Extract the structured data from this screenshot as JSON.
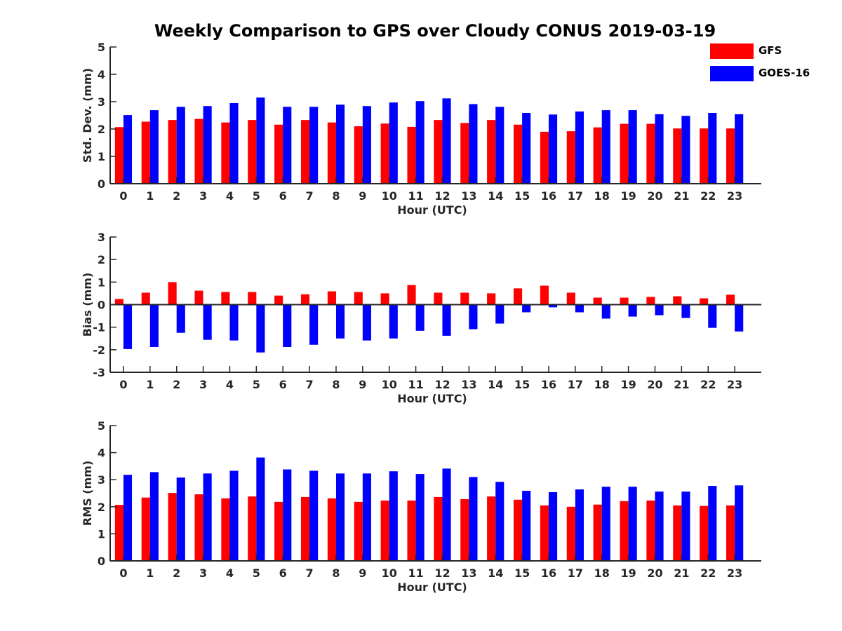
{
  "title": "Weekly Comparison to GPS over Cloudy CONUS 2019-03-19",
  "legend": [
    {
      "name": "GFS",
      "color": "#ff0000"
    },
    {
      "name": "GOES-16",
      "color": "#0000ff"
    }
  ],
  "chart_data": [
    {
      "type": "bar",
      "title": "Weekly Comparison to GPS over Cloudy CONUS 2019-03-19",
      "xlabel": "Hour (UTC)",
      "ylabel": "Std. Dev. (mm)",
      "ylim": [
        0,
        5
      ],
      "yticks": [
        "0",
        "1",
        "2",
        "3",
        "4",
        "5"
      ],
      "categories": [
        "0",
        "1",
        "2",
        "3",
        "4",
        "5",
        "6",
        "7",
        "8",
        "9",
        "10",
        "11",
        "12",
        "13",
        "14",
        "15",
        "16",
        "17",
        "18",
        "19",
        "20",
        "21",
        "22",
        "23"
      ],
      "series": [
        {
          "name": "GFS",
          "color": "#ff0000",
          "values": [
            2.07,
            2.27,
            2.33,
            2.37,
            2.24,
            2.33,
            2.16,
            2.33,
            2.24,
            2.1,
            2.2,
            2.08,
            2.33,
            2.22,
            2.33,
            2.16,
            1.9,
            1.92,
            2.06,
            2.19,
            2.19,
            2.02,
            2.02,
            2.02
          ]
        },
        {
          "name": "GOES-16",
          "color": "#0000ff",
          "values": [
            2.51,
            2.69,
            2.81,
            2.84,
            2.95,
            3.15,
            2.81,
            2.81,
            2.89,
            2.84,
            2.97,
            3.02,
            3.12,
            2.91,
            2.81,
            2.59,
            2.53,
            2.64,
            2.69,
            2.69,
            2.54,
            2.48,
            2.59,
            2.54
          ]
        }
      ]
    },
    {
      "type": "bar",
      "xlabel": "Hour (UTC)",
      "ylabel": "Bias (mm)",
      "ylim": [
        -3,
        3
      ],
      "yticks": [
        "-3",
        "-2",
        "-1",
        "0",
        "1",
        "2",
        "3"
      ],
      "categories": [
        "0",
        "1",
        "2",
        "3",
        "4",
        "5",
        "6",
        "7",
        "8",
        "9",
        "10",
        "11",
        "12",
        "13",
        "14",
        "15",
        "16",
        "17",
        "18",
        "19",
        "20",
        "21",
        "22",
        "23"
      ],
      "series": [
        {
          "name": "GFS",
          "color": "#ff0000",
          "values": [
            0.25,
            0.53,
            1.0,
            0.62,
            0.56,
            0.56,
            0.4,
            0.46,
            0.59,
            0.56,
            0.5,
            0.87,
            0.53,
            0.53,
            0.5,
            0.72,
            0.84,
            0.53,
            0.31,
            0.31,
            0.34,
            0.37,
            0.28,
            0.44
          ]
        },
        {
          "name": "GOES-16",
          "color": "#0000ff",
          "values": [
            -1.97,
            -1.88,
            -1.25,
            -1.56,
            -1.59,
            -2.12,
            -1.88,
            -1.78,
            -1.5,
            -1.59,
            -1.5,
            -1.16,
            -1.38,
            -1.09,
            -0.84,
            -0.34,
            -0.12,
            -0.34,
            -0.62,
            -0.53,
            -0.47,
            -0.59,
            -1.03,
            -1.19
          ]
        }
      ]
    },
    {
      "type": "bar",
      "xlabel": "Hour (UTC)",
      "ylabel": "RMS (mm)",
      "ylim": [
        0,
        5
      ],
      "yticks": [
        "0",
        "1",
        "2",
        "3",
        "4",
        "5"
      ],
      "categories": [
        "0",
        "1",
        "2",
        "3",
        "4",
        "5",
        "6",
        "7",
        "8",
        "9",
        "10",
        "11",
        "12",
        "13",
        "14",
        "15",
        "16",
        "17",
        "18",
        "19",
        "20",
        "21",
        "22",
        "23"
      ],
      "series": [
        {
          "name": "GFS",
          "color": "#ff0000",
          "values": [
            2.07,
            2.34,
            2.51,
            2.46,
            2.31,
            2.38,
            2.18,
            2.36,
            2.31,
            2.18,
            2.23,
            2.23,
            2.36,
            2.28,
            2.38,
            2.26,
            2.05,
            2.0,
            2.08,
            2.21,
            2.23,
            2.05,
            2.03,
            2.05
          ]
        },
        {
          "name": "GOES-16",
          "color": "#0000ff",
          "values": [
            3.18,
            3.28,
            3.08,
            3.23,
            3.33,
            3.82,
            3.38,
            3.33,
            3.23,
            3.23,
            3.31,
            3.21,
            3.41,
            3.1,
            2.92,
            2.59,
            2.54,
            2.64,
            2.74,
            2.74,
            2.56,
            2.56,
            2.77,
            2.79
          ]
        }
      ]
    }
  ]
}
